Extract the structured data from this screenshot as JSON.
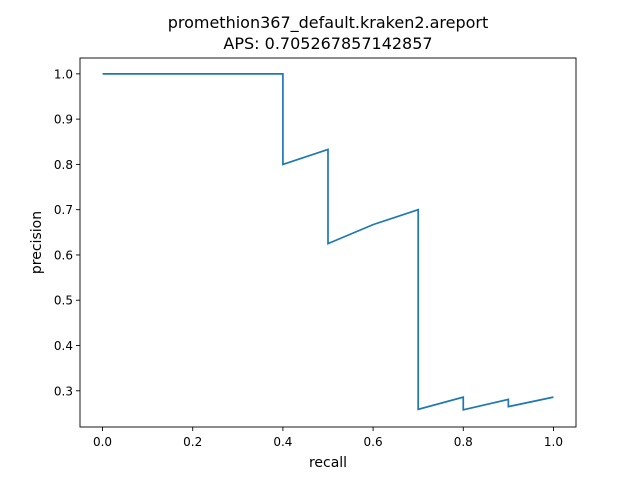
{
  "chart_data": {
    "type": "line",
    "title_line1": "promethion367_default.kraken2.areport",
    "title_line2": "APS: 0.705267857142857",
    "xlabel": "recall",
    "ylabel": "precision",
    "xlim": [
      -0.05,
      1.05
    ],
    "ylim": [
      0.22,
      1.035
    ],
    "x_ticks": [
      0.0,
      0.2,
      0.4,
      0.6,
      0.8,
      1.0
    ],
    "x_tick_labels": [
      "0.0",
      "0.2",
      "0.4",
      "0.6",
      "0.8",
      "1.0"
    ],
    "y_ticks": [
      0.3,
      0.4,
      0.5,
      0.6,
      0.7,
      0.8,
      0.9,
      1.0
    ],
    "y_tick_labels": [
      "0.3",
      "0.4",
      "0.5",
      "0.6",
      "0.7",
      "0.8",
      "0.9",
      "1.0"
    ],
    "grid": false,
    "line_color": "#1f77b4",
    "series": [
      {
        "x": [
          0.0,
          0.4,
          0.4,
          0.5,
          0.5,
          0.6,
          0.7,
          0.7,
          0.8,
          0.8,
          0.9,
          0.9,
          1.0
        ],
        "y": [
          1.0,
          1.0,
          0.8,
          0.833,
          0.625,
          0.667,
          0.7,
          0.259,
          0.286,
          0.258,
          0.281,
          0.265,
          0.286
        ]
      }
    ]
  }
}
